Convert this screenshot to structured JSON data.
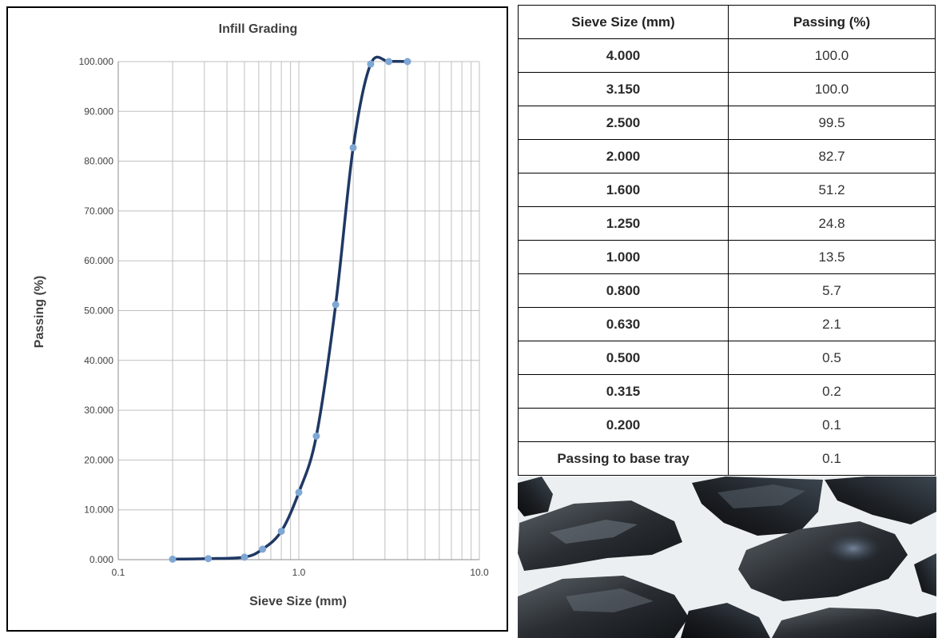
{
  "chart_data": {
    "type": "line",
    "title": "Infill Grading",
    "xlabel": "Sieve Size (mm)",
    "ylabel": "Passing (%)",
    "x_scale": "log",
    "xlim": [
      0.1,
      10.0
    ],
    "ylim": [
      0,
      100
    ],
    "x_tick_labels": [
      "0.1",
      "1.0",
      "10.0"
    ],
    "y_tick_labels": [
      "0.000",
      "10.000",
      "20.000",
      "30.000",
      "40.000",
      "50.000",
      "60.000",
      "70.000",
      "80.000",
      "90.000",
      "100.000"
    ],
    "grid": true,
    "legend": "none",
    "line_color": "#1f3864",
    "marker_color": "#7fa7d4",
    "series": [
      {
        "x": [
          0.2,
          0.315,
          0.5,
          0.63,
          0.8,
          1.0,
          1.25,
          1.6,
          2.0,
          2.5,
          3.15,
          4.0
        ],
        "y": [
          0.1,
          0.2,
          0.5,
          2.1,
          5.7,
          13.5,
          24.8,
          51.2,
          82.7,
          99.5,
          100.0,
          100.0
        ]
      }
    ]
  },
  "table": {
    "headers": [
      "Sieve Size (mm)",
      "Passing (%)"
    ],
    "rows": [
      [
        "4.000",
        "100.0"
      ],
      [
        "3.150",
        "100.0"
      ],
      [
        "2.500",
        "99.5"
      ],
      [
        "2.000",
        "82.7"
      ],
      [
        "1.600",
        "51.2"
      ],
      [
        "1.250",
        "24.8"
      ],
      [
        "1.000",
        "13.5"
      ],
      [
        "0.800",
        "5.7"
      ],
      [
        "0.630",
        "2.1"
      ],
      [
        "0.500",
        "0.5"
      ],
      [
        "0.315",
        "0.2"
      ],
      [
        "0.200",
        "0.1"
      ],
      [
        "Passing to base tray",
        "0.1"
      ]
    ]
  }
}
